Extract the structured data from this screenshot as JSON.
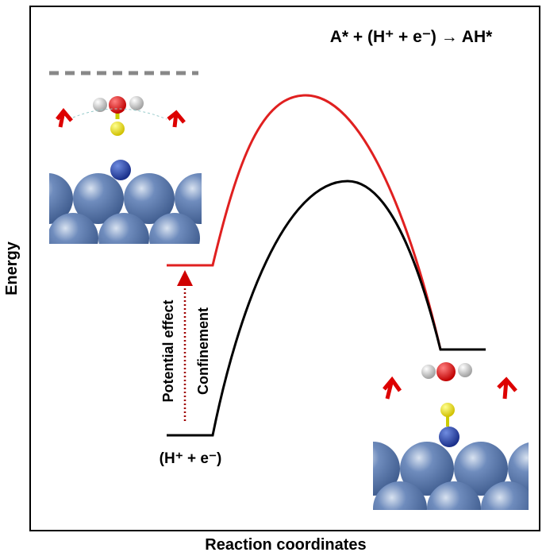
{
  "title": "A* + (H⁺ + e⁻) → AH*",
  "x_label": "Reaction coordinates",
  "y_label": "Energy",
  "annotations": {
    "potential_effect": "Potential effect",
    "confinement": "Confinement",
    "initial_state": "(H⁺ + e⁻)"
  }
}
